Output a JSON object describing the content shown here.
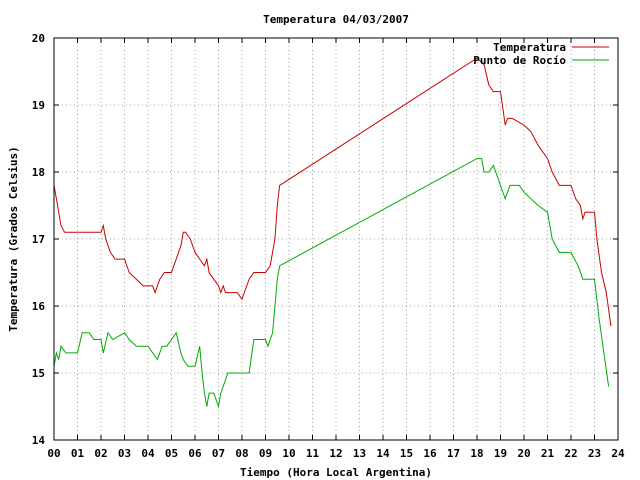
{
  "chart_data": {
    "type": "line",
    "title": "Temperatura 04/03/2007",
    "xlabel": "Tiempo (Hora Local Argentina)",
    "ylabel": "Temperatura (Grados Celsius)",
    "xlim": [
      0,
      24
    ],
    "ylim": [
      14,
      20
    ],
    "x_ticks": [
      "00",
      "01",
      "02",
      "03",
      "04",
      "05",
      "06",
      "07",
      "08",
      "09",
      "10",
      "11",
      "12",
      "13",
      "14",
      "15",
      "16",
      "17",
      "18",
      "19",
      "20",
      "21",
      "22",
      "23",
      "24"
    ],
    "y_ticks": [
      "14",
      "15",
      "16",
      "17",
      "18",
      "19",
      "20"
    ],
    "grid": true,
    "legend_position": "top-right",
    "series": [
      {
        "name": "Temperatura",
        "color": "#cc0000",
        "points": [
          [
            0.0,
            17.8
          ],
          [
            0.1,
            17.6
          ],
          [
            0.2,
            17.4
          ],
          [
            0.3,
            17.2
          ],
          [
            0.45,
            17.1
          ],
          [
            1.0,
            17.1
          ],
          [
            1.5,
            17.1
          ],
          [
            2.0,
            17.1
          ],
          [
            2.1,
            17.2
          ],
          [
            2.2,
            17.0
          ],
          [
            2.4,
            16.8
          ],
          [
            2.6,
            16.7
          ],
          [
            3.0,
            16.7
          ],
          [
            3.2,
            16.5
          ],
          [
            3.5,
            16.4
          ],
          [
            3.8,
            16.3
          ],
          [
            4.0,
            16.3
          ],
          [
            4.2,
            16.3
          ],
          [
            4.3,
            16.2
          ],
          [
            4.4,
            16.3
          ],
          [
            4.5,
            16.4
          ],
          [
            4.7,
            16.5
          ],
          [
            5.0,
            16.5
          ],
          [
            5.2,
            16.7
          ],
          [
            5.4,
            16.9
          ],
          [
            5.5,
            17.1
          ],
          [
            5.6,
            17.1
          ],
          [
            5.8,
            17.0
          ],
          [
            6.0,
            16.8
          ],
          [
            6.2,
            16.7
          ],
          [
            6.4,
            16.6
          ],
          [
            6.5,
            16.7
          ],
          [
            6.6,
            16.5
          ],
          [
            6.8,
            16.4
          ],
          [
            7.0,
            16.3
          ],
          [
            7.1,
            16.2
          ],
          [
            7.2,
            16.3
          ],
          [
            7.3,
            16.2
          ],
          [
            7.5,
            16.2
          ],
          [
            7.8,
            16.2
          ],
          [
            8.0,
            16.1
          ],
          [
            8.1,
            16.2
          ],
          [
            8.3,
            16.4
          ],
          [
            8.5,
            16.5
          ],
          [
            9.0,
            16.5
          ],
          [
            9.2,
            16.6
          ],
          [
            9.4,
            17.0
          ],
          [
            9.5,
            17.5
          ],
          [
            9.6,
            17.8
          ],
          [
            18.0,
            19.7
          ],
          [
            18.3,
            19.6
          ],
          [
            18.5,
            19.3
          ],
          [
            18.7,
            19.2
          ],
          [
            19.0,
            19.2
          ],
          [
            19.2,
            18.7
          ],
          [
            19.3,
            18.8
          ],
          [
            19.5,
            18.8
          ],
          [
            20.0,
            18.7
          ],
          [
            20.3,
            18.6
          ],
          [
            20.6,
            18.4
          ],
          [
            21.0,
            18.2
          ],
          [
            21.2,
            18.0
          ],
          [
            21.5,
            17.8
          ],
          [
            22.0,
            17.8
          ],
          [
            22.2,
            17.6
          ],
          [
            22.4,
            17.5
          ],
          [
            22.5,
            17.3
          ],
          [
            22.6,
            17.4
          ],
          [
            23.0,
            17.4
          ],
          [
            23.1,
            17.0
          ],
          [
            23.3,
            16.5
          ],
          [
            23.5,
            16.2
          ],
          [
            23.7,
            15.7
          ]
        ]
      },
      {
        "name": "Punto de Rocío",
        "color": "#00aa00",
        "points": [
          [
            0.0,
            15.1
          ],
          [
            0.1,
            15.3
          ],
          [
            0.2,
            15.2
          ],
          [
            0.3,
            15.4
          ],
          [
            0.5,
            15.3
          ],
          [
            1.0,
            15.3
          ],
          [
            1.2,
            15.6
          ],
          [
            1.5,
            15.6
          ],
          [
            1.7,
            15.5
          ],
          [
            2.0,
            15.5
          ],
          [
            2.1,
            15.3
          ],
          [
            2.3,
            15.6
          ],
          [
            2.5,
            15.5
          ],
          [
            3.0,
            15.6
          ],
          [
            3.2,
            15.5
          ],
          [
            3.5,
            15.4
          ],
          [
            3.8,
            15.4
          ],
          [
            4.0,
            15.4
          ],
          [
            4.2,
            15.3
          ],
          [
            4.4,
            15.2
          ],
          [
            4.6,
            15.4
          ],
          [
            4.8,
            15.4
          ],
          [
            5.0,
            15.5
          ],
          [
            5.2,
            15.6
          ],
          [
            5.4,
            15.3
          ],
          [
            5.5,
            15.2
          ],
          [
            5.7,
            15.1
          ],
          [
            6.0,
            15.1
          ],
          [
            6.2,
            15.4
          ],
          [
            6.3,
            15.0
          ],
          [
            6.4,
            14.7
          ],
          [
            6.5,
            14.5
          ],
          [
            6.6,
            14.7
          ],
          [
            6.8,
            14.7
          ],
          [
            7.0,
            14.5
          ],
          [
            7.1,
            14.7
          ],
          [
            7.2,
            14.8
          ],
          [
            7.4,
            15.0
          ],
          [
            8.0,
            15.0
          ],
          [
            8.3,
            15.0
          ],
          [
            8.5,
            15.5
          ],
          [
            9.0,
            15.5
          ],
          [
            9.1,
            15.4
          ],
          [
            9.3,
            15.6
          ],
          [
            9.5,
            16.4
          ],
          [
            9.6,
            16.6
          ],
          [
            18.0,
            18.2
          ],
          [
            18.2,
            18.2
          ],
          [
            18.3,
            18.0
          ],
          [
            18.5,
            18.0
          ],
          [
            18.7,
            18.1
          ],
          [
            19.0,
            17.8
          ],
          [
            19.2,
            17.6
          ],
          [
            19.4,
            17.8
          ],
          [
            19.8,
            17.8
          ],
          [
            20.0,
            17.7
          ],
          [
            20.3,
            17.6
          ],
          [
            20.6,
            17.5
          ],
          [
            21.0,
            17.4
          ],
          [
            21.2,
            17.0
          ],
          [
            21.5,
            16.8
          ],
          [
            22.0,
            16.8
          ],
          [
            22.3,
            16.6
          ],
          [
            22.5,
            16.4
          ],
          [
            23.0,
            16.4
          ],
          [
            23.2,
            15.8
          ],
          [
            23.4,
            15.3
          ],
          [
            23.6,
            14.8
          ]
        ]
      }
    ]
  }
}
